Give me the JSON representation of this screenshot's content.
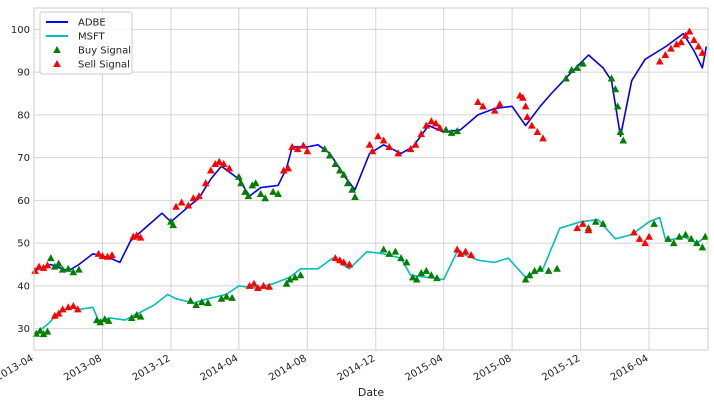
{
  "chart_data": {
    "type": "line",
    "title": "",
    "xlabel": "Date",
    "ylabel": "",
    "x_range": [
      "2013-04-01",
      "2016-07-15"
    ],
    "ylim": [
      25,
      105
    ],
    "x_ticks": [
      "2013-04",
      "2013-08",
      "2013-12",
      "2014-04",
      "2014-08",
      "2014-12",
      "2015-04",
      "2015-08",
      "2015-12",
      "2016-04"
    ],
    "y_ticks": [
      30,
      40,
      50,
      60,
      70,
      80,
      90,
      100
    ],
    "grid": true,
    "legend_position": "top-left",
    "legend": [
      "ADBE",
      "MSFT",
      "Buy Signal",
      "Sell Signal"
    ],
    "series": [
      {
        "name": "ADBE",
        "color": "#0000ff",
        "points": [
          [
            "2013-04-01",
            43.5
          ],
          [
            "2013-05-01",
            45.0
          ],
          [
            "2013-06-01",
            43.5
          ],
          [
            "2013-06-20",
            45.0
          ],
          [
            "2013-07-15",
            47.5
          ],
          [
            "2013-08-15",
            46.5
          ],
          [
            "2013-09-01",
            45.5
          ],
          [
            "2013-09-20",
            50.5
          ],
          [
            "2013-10-20",
            54.0
          ],
          [
            "2013-11-15",
            57.0
          ],
          [
            "2013-12-01",
            55.0
          ],
          [
            "2014-01-01",
            58.5
          ],
          [
            "2014-01-20",
            60.5
          ],
          [
            "2014-02-10",
            65.0
          ],
          [
            "2014-03-01",
            68.0
          ],
          [
            "2014-04-01",
            65.0
          ],
          [
            "2014-04-20",
            61.0
          ],
          [
            "2014-05-10",
            63.0
          ],
          [
            "2014-06-10",
            63.5
          ],
          [
            "2014-06-25",
            67.5
          ],
          [
            "2014-07-05",
            72.5
          ],
          [
            "2014-08-01",
            72.5
          ],
          [
            "2014-08-20",
            73.0
          ],
          [
            "2014-09-10",
            71.0
          ],
          [
            "2014-10-10",
            65.0
          ],
          [
            "2014-10-25",
            62.5
          ],
          [
            "2014-11-20",
            71.0
          ],
          [
            "2014-12-15",
            73.0
          ],
          [
            "2015-01-15",
            71.0
          ],
          [
            "2015-02-05",
            72.5
          ],
          [
            "2015-03-05",
            77.5
          ],
          [
            "2015-04-01",
            76.0
          ],
          [
            "2015-05-01",
            76.5
          ],
          [
            "2015-06-01",
            80.0
          ],
          [
            "2015-07-01",
            81.5
          ],
          [
            "2015-08-01",
            82.0
          ],
          [
            "2015-08-25",
            77.5
          ],
          [
            "2015-09-20",
            82.0
          ],
          [
            "2015-10-10",
            85.0
          ],
          [
            "2015-11-15",
            90.0
          ],
          [
            "2015-12-15",
            94.0
          ],
          [
            "2016-01-10",
            91.0
          ],
          [
            "2016-01-25",
            88.0
          ],
          [
            "2016-02-10",
            75.0
          ],
          [
            "2016-03-01",
            88.0
          ],
          [
            "2016-03-25",
            93.0
          ],
          [
            "2016-05-01",
            96.0
          ],
          [
            "2016-06-01",
            99.0
          ],
          [
            "2016-06-20",
            95.0
          ],
          [
            "2016-07-05",
            91.0
          ],
          [
            "2016-07-12",
            96.0
          ]
        ]
      },
      {
        "name": "MSFT",
        "color": "#00bfbf",
        "points": [
          [
            "2013-04-01",
            28.5
          ],
          [
            "2013-04-25",
            31.0
          ],
          [
            "2013-05-10",
            33.0
          ],
          [
            "2013-06-01",
            35.0
          ],
          [
            "2013-06-20",
            34.5
          ],
          [
            "2013-07-15",
            35.0
          ],
          [
            "2013-07-25",
            31.8
          ],
          [
            "2013-08-15",
            32.5
          ],
          [
            "2013-09-10",
            32.0
          ],
          [
            "2013-10-10",
            34.0
          ],
          [
            "2013-11-01",
            35.5
          ],
          [
            "2013-11-25",
            38.0
          ],
          [
            "2013-12-10",
            37.0
          ],
          [
            "2014-01-10",
            36.0
          ],
          [
            "2014-02-05",
            37.0
          ],
          [
            "2014-03-10",
            38.0
          ],
          [
            "2014-04-01",
            40.0
          ],
          [
            "2014-05-01",
            39.5
          ],
          [
            "2014-06-01",
            40.5
          ],
          [
            "2014-07-01",
            42.0
          ],
          [
            "2014-07-20",
            44.0
          ],
          [
            "2014-08-20",
            44.0
          ],
          [
            "2014-09-15",
            46.5
          ],
          [
            "2014-10-15",
            44.0
          ],
          [
            "2014-11-15",
            48.0
          ],
          [
            "2014-12-15",
            47.5
          ],
          [
            "2015-01-15",
            46.5
          ],
          [
            "2015-02-01",
            42.5
          ],
          [
            "2015-03-01",
            42.0
          ],
          [
            "2015-04-01",
            41.5
          ],
          [
            "2015-04-25",
            48.0
          ],
          [
            "2015-06-01",
            46.0
          ],
          [
            "2015-07-01",
            45.5
          ],
          [
            "2015-07-25",
            46.5
          ],
          [
            "2015-08-25",
            42.0
          ],
          [
            "2015-09-25",
            44.0
          ],
          [
            "2015-10-25",
            53.5
          ],
          [
            "2015-12-01",
            55.0
          ],
          [
            "2016-01-01",
            55.5
          ],
          [
            "2016-02-01",
            51.0
          ],
          [
            "2016-03-01",
            52.0
          ],
          [
            "2016-04-01",
            55.0
          ],
          [
            "2016-04-20",
            56.0
          ],
          [
            "2016-05-01",
            50.5
          ],
          [
            "2016-06-01",
            51.5
          ],
          [
            "2016-06-25",
            50.0
          ],
          [
            "2016-07-12",
            51.5
          ]
        ]
      },
      {
        "name": "Buy Signal",
        "color": "#008000",
        "marker": "triangle-up",
        "points": [
          [
            "2013-04-05",
            28.8
          ],
          [
            "2013-04-12",
            29.5
          ],
          [
            "2013-04-18",
            28.7
          ],
          [
            "2013-04-25",
            29.3
          ],
          [
            "2013-05-01",
            46.5
          ],
          [
            "2013-05-08",
            44.5
          ],
          [
            "2013-05-15",
            45.2
          ],
          [
            "2013-05-22",
            43.8
          ],
          [
            "2013-06-01",
            44.0
          ],
          [
            "2013-06-10",
            43.2
          ],
          [
            "2013-06-20",
            43.8
          ],
          [
            "2013-07-22",
            32.0
          ],
          [
            "2013-07-28",
            31.5
          ],
          [
            "2013-08-05",
            32.2
          ],
          [
            "2013-08-12",
            31.8
          ],
          [
            "2013-09-22",
            32.5
          ],
          [
            "2013-10-01",
            33.2
          ],
          [
            "2013-10-08",
            32.8
          ],
          [
            "2013-12-01",
            55.0
          ],
          [
            "2013-12-05",
            54.2
          ],
          [
            "2014-01-05",
            36.5
          ],
          [
            "2014-01-15",
            35.5
          ],
          [
            "2014-01-25",
            36.2
          ],
          [
            "2014-02-05",
            36.0
          ],
          [
            "2014-03-01",
            37.0
          ],
          [
            "2014-03-10",
            37.5
          ],
          [
            "2014-03-20",
            37.2
          ],
          [
            "2014-04-01",
            65.5
          ],
          [
            "2014-04-05",
            64.0
          ],
          [
            "2014-04-12",
            62.0
          ],
          [
            "2014-04-18",
            61.0
          ],
          [
            "2014-04-25",
            63.5
          ],
          [
            "2014-05-01",
            64.0
          ],
          [
            "2014-05-10",
            61.5
          ],
          [
            "2014-05-18",
            60.5
          ],
          [
            "2014-06-01",
            62.0
          ],
          [
            "2014-06-10",
            61.5
          ],
          [
            "2014-06-25",
            40.5
          ],
          [
            "2014-07-01",
            41.5
          ],
          [
            "2014-07-10",
            42.0
          ],
          [
            "2014-07-20",
            42.5
          ],
          [
            "2014-09-01",
            72.0
          ],
          [
            "2014-09-10",
            70.5
          ],
          [
            "2014-09-20",
            68.5
          ],
          [
            "2014-09-28",
            67.0
          ],
          [
            "2014-10-05",
            66.0
          ],
          [
            "2014-10-12",
            64.0
          ],
          [
            "2014-10-20",
            62.5
          ],
          [
            "2014-10-25",
            60.8
          ],
          [
            "2014-12-15",
            48.5
          ],
          [
            "2014-12-25",
            47.5
          ],
          [
            "2015-01-05",
            48.0
          ],
          [
            "2015-01-15",
            46.5
          ],
          [
            "2015-01-25",
            45.5
          ],
          [
            "2015-02-05",
            42.0
          ],
          [
            "2015-02-12",
            41.5
          ],
          [
            "2015-02-20",
            43.0
          ],
          [
            "2015-03-01",
            43.5
          ],
          [
            "2015-03-10",
            42.5
          ],
          [
            "2015-03-20",
            41.8
          ],
          [
            "2015-04-05",
            76.5
          ],
          [
            "2015-04-15",
            75.8
          ],
          [
            "2015-04-25",
            76.2
          ],
          [
            "2015-08-25",
            41.5
          ],
          [
            "2015-09-01",
            42.5
          ],
          [
            "2015-09-10",
            43.5
          ],
          [
            "2015-09-20",
            44.0
          ],
          [
            "2015-10-05",
            43.5
          ],
          [
            "2015-10-20",
            44.0
          ],
          [
            "2015-11-05",
            88.5
          ],
          [
            "2015-11-15",
            90.5
          ],
          [
            "2015-11-25",
            91.0
          ],
          [
            "2015-12-05",
            92.0
          ],
          [
            "2015-12-15",
            53.5
          ],
          [
            "2015-12-28",
            55.0
          ],
          [
            "2016-01-10",
            54.5
          ],
          [
            "2016-01-25",
            88.5
          ],
          [
            "2016-02-01",
            86.0
          ],
          [
            "2016-02-05",
            82.0
          ],
          [
            "2016-02-10",
            76.0
          ],
          [
            "2016-02-15",
            74.0
          ],
          [
            "2016-04-10",
            54.5
          ],
          [
            "2016-05-05",
            51.0
          ],
          [
            "2016-05-15",
            50.0
          ],
          [
            "2016-05-25",
            51.5
          ],
          [
            "2016-06-05",
            52.0
          ],
          [
            "2016-06-15",
            51.0
          ],
          [
            "2016-06-25",
            50.0
          ],
          [
            "2016-07-05",
            49.0
          ],
          [
            "2016-07-10",
            51.5
          ]
        ]
      },
      {
        "name": "Sell Signal",
        "color": "#ff0000",
        "marker": "triangle-up",
        "points": [
          [
            "2013-04-03",
            43.5
          ],
          [
            "2013-04-10",
            44.5
          ],
          [
            "2013-04-18",
            44.2
          ],
          [
            "2013-04-25",
            44.8
          ],
          [
            "2013-05-08",
            33.0
          ],
          [
            "2013-05-15",
            33.5
          ],
          [
            "2013-05-22",
            34.5
          ],
          [
            "2013-06-01",
            35.0
          ],
          [
            "2013-06-10",
            35.3
          ],
          [
            "2013-06-18",
            34.5
          ],
          [
            "2013-07-25",
            47.5
          ],
          [
            "2013-08-01",
            47.0
          ],
          [
            "2013-08-10",
            46.8
          ],
          [
            "2013-08-18",
            47.2
          ],
          [
            "2013-09-25",
            51.5
          ],
          [
            "2013-10-01",
            51.8
          ],
          [
            "2013-10-08",
            51.3
          ],
          [
            "2013-12-10",
            58.5
          ],
          [
            "2013-12-20",
            59.5
          ],
          [
            "2014-01-01",
            58.8
          ],
          [
            "2014-01-10",
            60.5
          ],
          [
            "2014-01-20",
            61.0
          ],
          [
            "2014-02-01",
            64.0
          ],
          [
            "2014-02-10",
            67.0
          ],
          [
            "2014-02-18",
            68.5
          ],
          [
            "2014-02-25",
            69.0
          ],
          [
            "2014-03-05",
            68.5
          ],
          [
            "2014-03-15",
            67.5
          ],
          [
            "2014-04-20",
            40.0
          ],
          [
            "2014-04-28",
            40.5
          ],
          [
            "2014-05-05",
            39.5
          ],
          [
            "2014-05-15",
            40.0
          ],
          [
            "2014-05-25",
            39.8
          ],
          [
            "2014-06-20",
            67.0
          ],
          [
            "2014-06-28",
            67.5
          ],
          [
            "2014-07-05",
            72.5
          ],
          [
            "2014-07-15",
            72.0
          ],
          [
            "2014-07-25",
            72.8
          ],
          [
            "2014-08-01",
            71.5
          ],
          [
            "2014-09-20",
            46.5
          ],
          [
            "2014-09-28",
            46.0
          ],
          [
            "2014-10-05",
            45.5
          ],
          [
            "2014-10-15",
            45.0
          ],
          [
            "2014-11-20",
            73.0
          ],
          [
            "2014-11-25",
            71.5
          ],
          [
            "2014-12-05",
            75.0
          ],
          [
            "2014-12-15",
            74.0
          ],
          [
            "2014-12-25",
            72.5
          ],
          [
            "2015-01-10",
            71.0
          ],
          [
            "2015-02-01",
            72.0
          ],
          [
            "2015-02-10",
            73.0
          ],
          [
            "2015-02-20",
            75.5
          ],
          [
            "2015-03-01",
            77.5
          ],
          [
            "2015-03-10",
            78.5
          ],
          [
            "2015-03-18",
            78.0
          ],
          [
            "2015-03-25",
            77.0
          ],
          [
            "2015-04-25",
            48.5
          ],
          [
            "2015-05-01",
            47.5
          ],
          [
            "2015-05-10",
            48.0
          ],
          [
            "2015-05-20",
            47.2
          ],
          [
            "2015-06-01",
            83.0
          ],
          [
            "2015-06-10",
            82.0
          ],
          [
            "2015-07-01",
            81.0
          ],
          [
            "2015-07-10",
            82.5
          ],
          [
            "2015-08-15",
            84.5
          ],
          [
            "2015-08-20",
            84.0
          ],
          [
            "2015-08-25",
            82.0
          ],
          [
            "2015-08-28",
            79.5
          ],
          [
            "2015-09-05",
            77.5
          ],
          [
            "2015-09-15",
            76.0
          ],
          [
            "2015-09-25",
            74.5
          ],
          [
            "2015-11-25",
            53.5
          ],
          [
            "2015-12-05",
            54.5
          ],
          [
            "2015-12-15",
            53.0
          ],
          [
            "2016-03-05",
            52.5
          ],
          [
            "2016-03-15",
            51.0
          ],
          [
            "2016-03-25",
            50.0
          ],
          [
            "2016-04-01",
            51.5
          ],
          [
            "2016-04-20",
            92.5
          ],
          [
            "2016-04-30",
            94.0
          ],
          [
            "2016-05-10",
            95.5
          ],
          [
            "2016-05-20",
            96.5
          ],
          [
            "2016-05-28",
            97.0
          ],
          [
            "2016-06-05",
            98.5
          ],
          [
            "2016-06-12",
            99.5
          ],
          [
            "2016-06-20",
            97.5
          ],
          [
            "2016-06-28",
            96.0
          ],
          [
            "2016-07-05",
            94.5
          ]
        ]
      }
    ]
  }
}
